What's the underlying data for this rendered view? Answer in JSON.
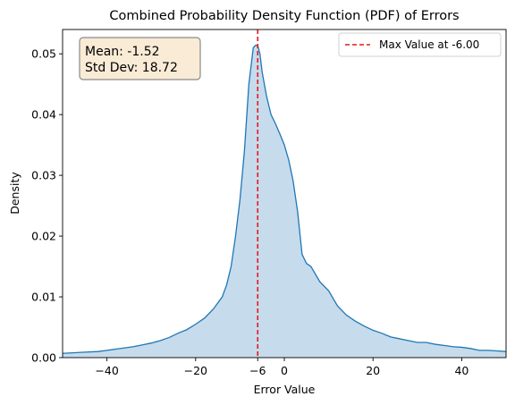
{
  "chart_data": {
    "type": "area",
    "title": "Combined Probability Density Function (PDF) of Errors",
    "xlabel": "Error Value",
    "ylabel": "Density",
    "xlim": [
      -50,
      50
    ],
    "ylim": [
      0,
      0.054
    ],
    "xticks": [
      -40,
      -20,
      -6,
      0,
      20,
      40
    ],
    "xtick_labels": [
      "−40",
      "−20",
      "−6",
      "0",
      "20",
      "40"
    ],
    "yticks": [
      0.0,
      0.01,
      0.02,
      0.03,
      0.04,
      0.05
    ],
    "ytick_labels": [
      "0.00",
      "0.01",
      "0.02",
      "0.03",
      "0.04",
      "0.05"
    ],
    "grid": false,
    "legend_position": "top-right",
    "stats_box": {
      "mean_label": "Mean: -1.52",
      "std_label": "Std Dev: 18.72",
      "position": "top-left"
    },
    "max_line": {
      "x": -6.0,
      "label": "Max Value at -6.00",
      "color": "#e41a1c"
    },
    "series": [
      {
        "color": "#1f77b4",
        "fill_color": "#c6dbec",
        "x": [
          -50,
          -45,
          -42,
          -40,
          -38,
          -36,
          -34,
          -32,
          -30,
          -28,
          -26,
          -24,
          -22,
          -20,
          -18,
          -16,
          -14,
          -13,
          -12,
          -11,
          -10,
          -9,
          -8,
          -7,
          -6.5,
          -6,
          -5.5,
          -5,
          -4,
          -3,
          -2,
          -1,
          0,
          1,
          2,
          3,
          4,
          5,
          6,
          8,
          10,
          12,
          14,
          16,
          18,
          20,
          22,
          24,
          26,
          28,
          30,
          32,
          34,
          36,
          38,
          40,
          42,
          44,
          46,
          48,
          50
        ],
        "y": [
          0.0007,
          0.0009,
          0.001,
          0.0012,
          0.0014,
          0.0016,
          0.0018,
          0.0021,
          0.0024,
          0.0028,
          0.0033,
          0.004,
          0.0046,
          0.0055,
          0.0065,
          0.008,
          0.01,
          0.012,
          0.015,
          0.02,
          0.026,
          0.034,
          0.045,
          0.051,
          0.0514,
          0.0514,
          0.05,
          0.047,
          0.043,
          0.04,
          0.0385,
          0.0368,
          0.035,
          0.0325,
          0.029,
          0.024,
          0.017,
          0.0155,
          0.015,
          0.0125,
          0.011,
          0.0085,
          0.007,
          0.006,
          0.0052,
          0.0045,
          0.004,
          0.0034,
          0.0031,
          0.0028,
          0.0025,
          0.0025,
          0.0022,
          0.002,
          0.0018,
          0.0017,
          0.0015,
          0.0012,
          0.0012,
          0.0011,
          0.001
        ]
      }
    ]
  }
}
